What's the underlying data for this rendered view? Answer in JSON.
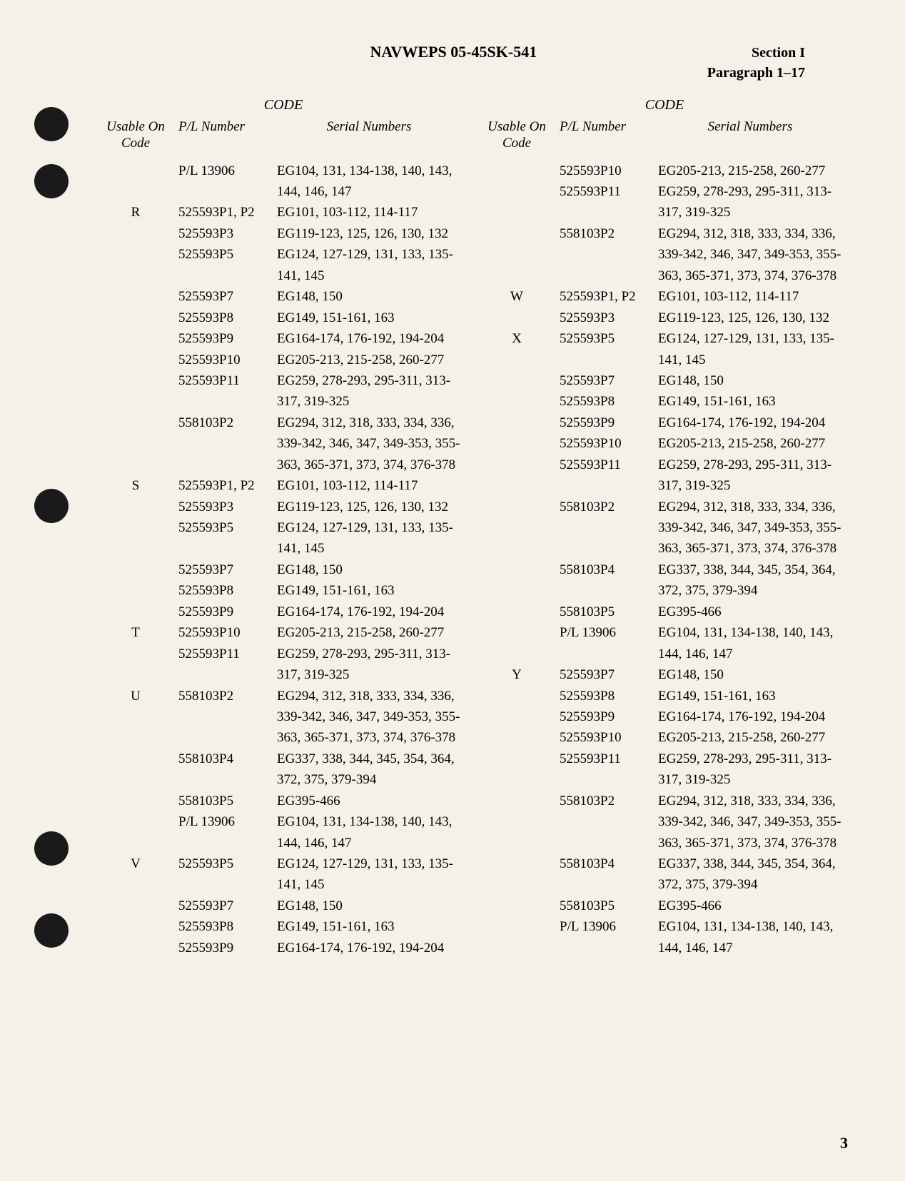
{
  "header": {
    "title": "NAVWEPS 05-45SK-541",
    "section": "Section I",
    "paragraph": "Paragraph 1–17"
  },
  "holes": [
    150,
    230,
    685,
    1165,
    1280
  ],
  "labels": {
    "code": "CODE",
    "usableOn": "Usable On",
    "codeCol": "Code",
    "plNumber": "P/L Number",
    "serials": "Serial Numbers"
  },
  "leftColumn": [
    {
      "code": "",
      "pl": "P/L 13906",
      "serial": "EG104, 131, 134-138, 140, 143, 144, 146, 147"
    },
    {
      "code": "R",
      "pl": "525593P1, P2",
      "serial": "EG101, 103-112, 114-117"
    },
    {
      "code": "",
      "pl": "525593P3",
      "serial": "EG119-123, 125, 126, 130, 132"
    },
    {
      "code": "",
      "pl": "525593P5",
      "serial": "EG124, 127-129, 131, 133, 135-141, 145"
    },
    {
      "code": "",
      "pl": "525593P7",
      "serial": "EG148, 150"
    },
    {
      "code": "",
      "pl": "525593P8",
      "serial": "EG149, 151-161, 163"
    },
    {
      "code": "",
      "pl": "525593P9",
      "serial": "EG164-174, 176-192, 194-204"
    },
    {
      "code": "",
      "pl": "525593P10",
      "serial": "EG205-213, 215-258, 260-277"
    },
    {
      "code": "",
      "pl": "525593P11",
      "serial": "EG259, 278-293, 295-311, 313-317, 319-325"
    },
    {
      "code": "",
      "pl": "558103P2",
      "serial": "EG294, 312, 318, 333, 334, 336, 339-342, 346, 347, 349-353, 355-363, 365-371, 373, 374, 376-378"
    },
    {
      "code": "S",
      "pl": "525593P1, P2",
      "serial": "EG101, 103-112, 114-117"
    },
    {
      "code": "",
      "pl": "525593P3",
      "serial": "EG119-123, 125, 126, 130, 132"
    },
    {
      "code": "",
      "pl": "525593P5",
      "serial": "EG124, 127-129, 131, 133, 135-141, 145"
    },
    {
      "code": "",
      "pl": "525593P7",
      "serial": "EG148, 150"
    },
    {
      "code": "",
      "pl": "525593P8",
      "serial": "EG149, 151-161, 163"
    },
    {
      "code": "",
      "pl": "525593P9",
      "serial": "EG164-174, 176-192, 194-204"
    },
    {
      "code": "T",
      "pl": "525593P10",
      "serial": "EG205-213, 215-258, 260-277"
    },
    {
      "code": "",
      "pl": "525593P11",
      "serial": "EG259, 278-293, 295-311, 313-317, 319-325"
    },
    {
      "code": "U",
      "pl": "558103P2",
      "serial": "EG294, 312, 318, 333, 334, 336, 339-342, 346, 347, 349-353, 355-363, 365-371, 373, 374, 376-378"
    },
    {
      "code": "",
      "pl": "558103P4",
      "serial": "EG337, 338, 344, 345, 354, 364, 372, 375, 379-394"
    },
    {
      "code": "",
      "pl": "558103P5",
      "serial": "EG395-466"
    },
    {
      "code": "",
      "pl": "P/L 13906",
      "serial": "EG104, 131, 134-138, 140, 143, 144, 146, 147"
    },
    {
      "code": "V",
      "pl": "525593P5",
      "serial": "EG124, 127-129, 131, 133, 135-141, 145"
    },
    {
      "code": "",
      "pl": "525593P7",
      "serial": "EG148, 150"
    },
    {
      "code": "",
      "pl": "525593P8",
      "serial": "EG149, 151-161, 163"
    },
    {
      "code": "",
      "pl": "525593P9",
      "serial": "EG164-174, 176-192, 194-204"
    }
  ],
  "rightColumn": [
    {
      "code": "",
      "pl": "525593P10",
      "serial": "EG205-213, 215-258, 260-277"
    },
    {
      "code": "",
      "pl": "525593P11",
      "serial": "EG259, 278-293, 295-311, 313-317, 319-325"
    },
    {
      "code": "",
      "pl": "558103P2",
      "serial": "EG294, 312, 318, 333, 334, 336, 339-342, 346, 347, 349-353, 355-363, 365-371, 373, 374, 376-378"
    },
    {
      "code": "W",
      "pl": "525593P1, P2",
      "serial": "EG101, 103-112, 114-117"
    },
    {
      "code": "",
      "pl": "525593P3",
      "serial": "EG119-123, 125, 126, 130, 132"
    },
    {
      "code": "X",
      "pl": "525593P5",
      "serial": "EG124, 127-129, 131, 133, 135-141, 145"
    },
    {
      "code": "",
      "pl": "525593P7",
      "serial": "EG148, 150"
    },
    {
      "code": "",
      "pl": "525593P8",
      "serial": "EG149, 151-161, 163"
    },
    {
      "code": "",
      "pl": "525593P9",
      "serial": "EG164-174, 176-192, 194-204"
    },
    {
      "code": "",
      "pl": "525593P10",
      "serial": "EG205-213, 215-258, 260-277"
    },
    {
      "code": "",
      "pl": "525593P11",
      "serial": "EG259, 278-293, 295-311, 313-317, 319-325"
    },
    {
      "code": "",
      "pl": "558103P2",
      "serial": "EG294, 312, 318, 333, 334, 336, 339-342, 346, 347, 349-353, 355-363, 365-371, 373, 374, 376-378"
    },
    {
      "code": "",
      "pl": "558103P4",
      "serial": "EG337, 338, 344, 345, 354, 364, 372, 375, 379-394"
    },
    {
      "code": "",
      "pl": "558103P5",
      "serial": "EG395-466"
    },
    {
      "code": "",
      "pl": "P/L 13906",
      "serial": "EG104, 131, 134-138, 140, 143, 144, 146, 147"
    },
    {
      "code": "Y",
      "pl": "525593P7",
      "serial": "EG148, 150"
    },
    {
      "code": "",
      "pl": "525593P8",
      "serial": "EG149, 151-161, 163"
    },
    {
      "code": "",
      "pl": "525593P9",
      "serial": "EG164-174, 176-192, 194-204"
    },
    {
      "code": "",
      "pl": "525593P10",
      "serial": "EG205-213, 215-258, 260-277"
    },
    {
      "code": "",
      "pl": "525593P11",
      "serial": "EG259, 278-293, 295-311, 313-317, 319-325"
    },
    {
      "code": "",
      "pl": "558103P2",
      "serial": "EG294, 312, 318, 333, 334, 336, 339-342, 346, 347, 349-353, 355-363, 365-371, 373, 374, 376-378"
    },
    {
      "code": "",
      "pl": "558103P4",
      "serial": "EG337, 338, 344, 345, 354, 364, 372, 375, 379-394"
    },
    {
      "code": "",
      "pl": "558103P5",
      "serial": "EG395-466"
    },
    {
      "code": "",
      "pl": "P/L 13906",
      "serial": "EG104, 131, 134-138, 140, 143, 144, 146, 147"
    }
  ],
  "pageNumber": "3"
}
